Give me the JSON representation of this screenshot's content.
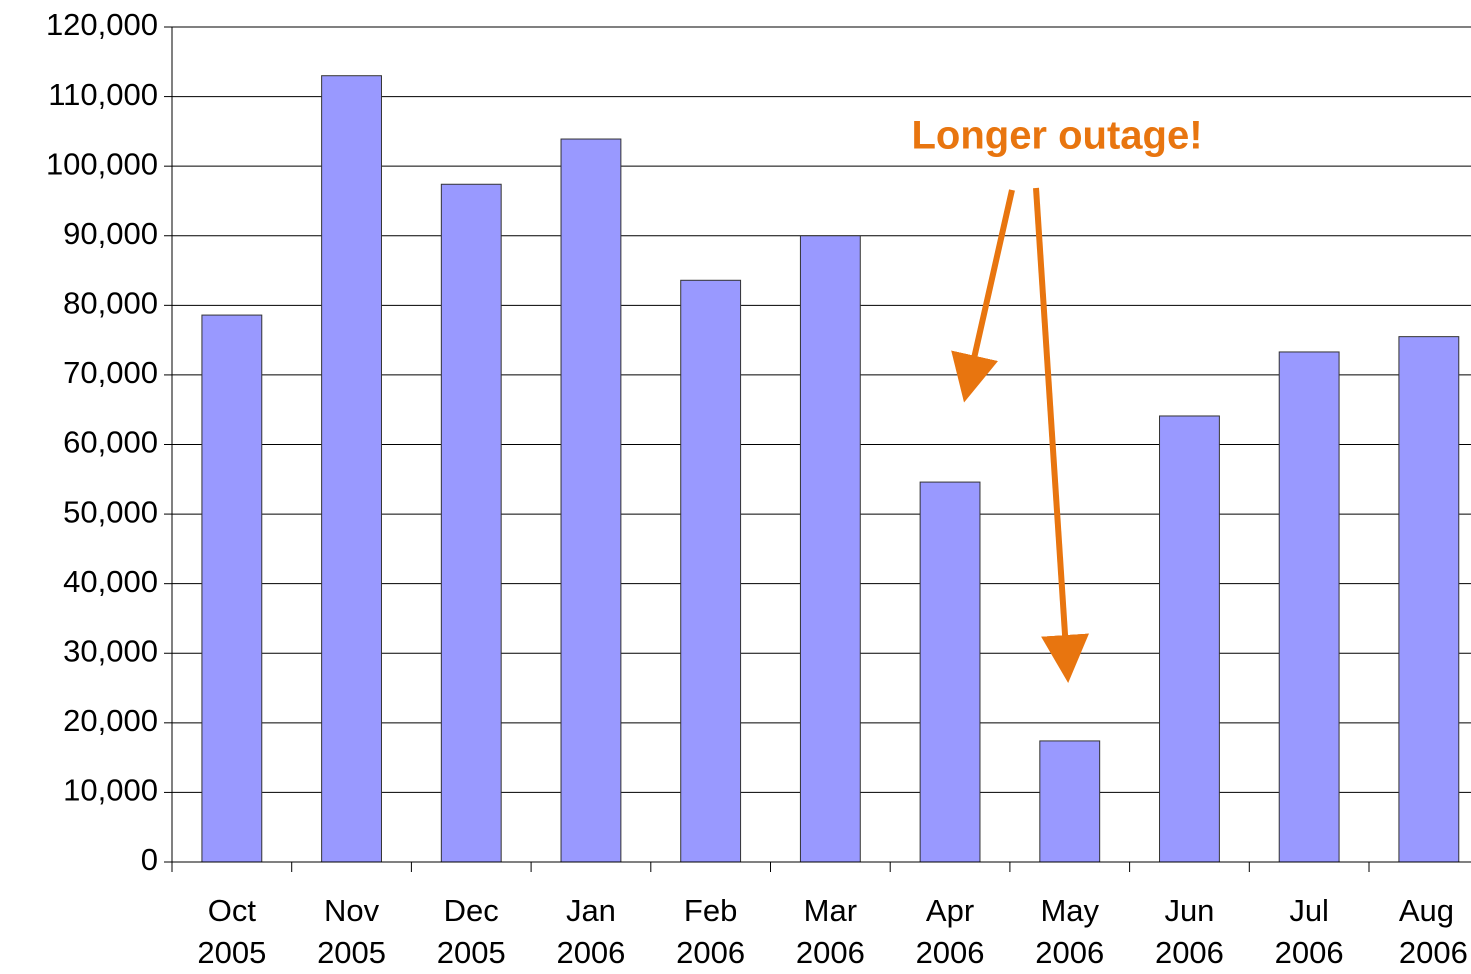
{
  "chart_data": {
    "type": "bar",
    "annotation": "Longer outage!",
    "categories": [
      "Oct 2005",
      "Nov 2005",
      "Dec 2005",
      "Jan 2006",
      "Feb 2006",
      "Mar 2006",
      "Apr 2006",
      "May 2006",
      "Jun 2006",
      "Jul 2006",
      "Aug 2006"
    ],
    "values": [
      78600,
      113000,
      97400,
      103900,
      83600,
      90000,
      54600,
      17400,
      64100,
      73300,
      75500
    ],
    "color": "#9999ff",
    "ylim": [
      0,
      120000
    ],
    "yticks": [
      0,
      {
        "value": 10000,
        "label": "10,000"
      },
      {
        "value": 20000,
        "label": "20,000"
      },
      {
        "value": 30000,
        "label": "30,000"
      },
      {
        "value": 40000,
        "label": "40,000"
      },
      {
        "value": 50000,
        "label": "50,000"
      },
      {
        "value": 60000,
        "label": "60,000"
      },
      {
        "value": 70000,
        "label": "70,000"
      },
      {
        "value": 80000,
        "label": "80,000"
      },
      {
        "value": 90000,
        "label": "90,000"
      },
      {
        "value": 100000,
        "label": "100,000"
      },
      {
        "value": 110000,
        "label": "110,000"
      },
      {
        "value": 120000,
        "label": "120,000"
      }
    ],
    "grid": true
  }
}
